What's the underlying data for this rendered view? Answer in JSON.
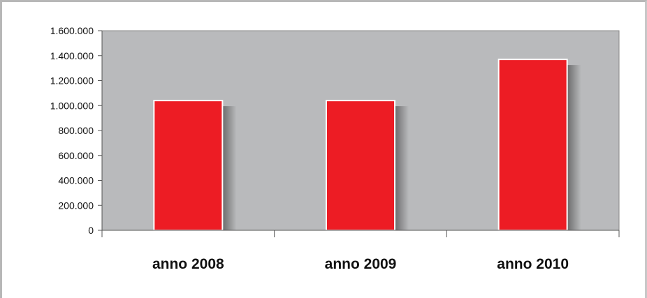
{
  "chart_data": {
    "type": "bar",
    "title": "",
    "xlabel": "",
    "ylabel": "",
    "categories": [
      "anno 2008",
      "anno 2009",
      "anno 2010"
    ],
    "values": [
      1040000,
      1040000,
      1370000
    ],
    "ylim": [
      0,
      1600000
    ],
    "y_ticks": [
      0,
      200000,
      400000,
      600000,
      800000,
      1000000,
      1200000,
      1400000,
      1600000
    ],
    "y_tick_labels": [
      "0",
      "200.000",
      "400.000",
      "600.000",
      "800.000",
      "1.000.000",
      "1.200.000",
      "1.400.000",
      "1.600.000"
    ],
    "grid": false,
    "legend": "none",
    "colors": {
      "bar": "#ed1c24",
      "bar_border": "#ffffff",
      "plot_background": "#b9babc",
      "axis": "#555555"
    }
  }
}
